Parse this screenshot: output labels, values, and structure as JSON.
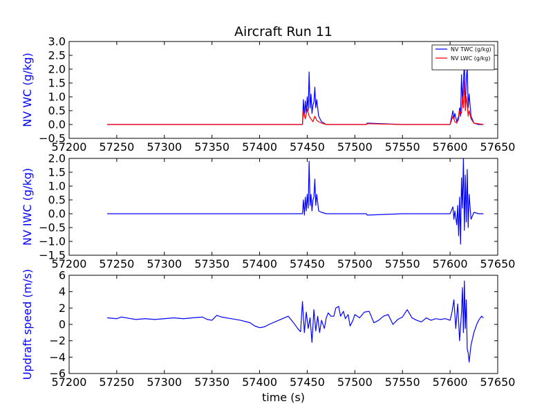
{
  "chart_data": [
    {
      "type": "line",
      "title": "Aircraft Run 11",
      "xlabel": "",
      "ylabel": "NV WC (g/kg)",
      "ylabel_color": "#0000ff",
      "xlim": [
        57200,
        57650
      ],
      "ylim": [
        -0.5,
        3.0
      ],
      "xticks": [
        "57200",
        "57250",
        "57300",
        "57350",
        "57400",
        "57450",
        "57500",
        "57550",
        "57600",
        "57650"
      ],
      "yticks": [
        "3.0",
        "2.5",
        "2.0",
        "1.5",
        "1.0",
        "0.5",
        "0.0",
        "−0.5"
      ],
      "grid": false,
      "legend_position": "upper-right",
      "series": [
        {
          "name": "NV TWC (g/kg)",
          "color": "#0000ff",
          "x": [
            57240,
            57300,
            57350,
            57400,
            57445,
            57446,
            57447,
            57448,
            57449,
            57450,
            57451,
            57452,
            57453,
            57454,
            57455,
            57456,
            57457,
            57458,
            57459,
            57460,
            57462,
            57465,
            57470,
            57500,
            57512,
            57513,
            57550,
            57600,
            57603,
            57604,
            57605,
            57607,
            57609,
            57610,
            57611,
            57612,
            57613,
            57614,
            57615,
            57616,
            57617,
            57618,
            57619,
            57620,
            57622,
            57625,
            57630,
            57635
          ],
          "y": [
            0.0,
            0.0,
            0.0,
            0.0,
            0.0,
            0.9,
            0.3,
            0.85,
            0.4,
            1.0,
            0.5,
            1.9,
            0.6,
            1.1,
            0.4,
            0.7,
            0.8,
            1.35,
            0.6,
            0.9,
            0.3,
            0.1,
            0.0,
            0.0,
            0.0,
            0.05,
            0.0,
            0.0,
            0.5,
            0.2,
            0.4,
            0.1,
            0.3,
            0.6,
            0.3,
            1.8,
            0.8,
            1.5,
            2.3,
            0.5,
            1.6,
            2.1,
            0.6,
            1.1,
            0.3,
            0.05,
            0.0,
            0.0
          ]
        },
        {
          "name": "NV LWC (g/kg)",
          "color": "#ff0000",
          "x": [
            57240,
            57300,
            57350,
            57400,
            57445,
            57446,
            57448,
            57450,
            57452,
            57454,
            57456,
            57458,
            57460,
            57462,
            57465,
            57470,
            57500,
            57512,
            57513,
            57550,
            57600,
            57603,
            57605,
            57607,
            57609,
            57610,
            57612,
            57613,
            57614,
            57615,
            57616,
            57617,
            57618,
            57619,
            57620,
            57622,
            57625,
            57635
          ],
          "y": [
            0.0,
            0.0,
            0.0,
            0.0,
            0.0,
            0.5,
            0.2,
            0.55,
            0.3,
            0.2,
            0.1,
            0.3,
            0.15,
            0.1,
            0.05,
            0.0,
            0.0,
            0.0,
            0.03,
            0.0,
            0.0,
            0.3,
            0.1,
            0.05,
            0.2,
            0.5,
            0.4,
            1.0,
            0.6,
            1.6,
            0.5,
            1.0,
            0.7,
            0.3,
            0.5,
            0.2,
            0.05,
            0.0
          ]
        }
      ]
    },
    {
      "type": "line",
      "title": "",
      "xlabel": "",
      "ylabel": "NV IWC (g/kg)",
      "ylabel_color": "#0000ff",
      "xlim": [
        57200,
        57650
      ],
      "ylim": [
        -1.5,
        2.0
      ],
      "xticks": [
        "57200",
        "57250",
        "57300",
        "57350",
        "57400",
        "57450",
        "57500",
        "57550",
        "57600",
        "57650"
      ],
      "yticks": [
        "2.0",
        "1.5",
        "1.0",
        "0.5",
        "0.0",
        "−0.5",
        "−1.0",
        "−1.5"
      ],
      "grid": false,
      "series": [
        {
          "name": "",
          "color": "#0000ff",
          "x": [
            57240,
            57300,
            57350,
            57400,
            57445,
            57446,
            57447,
            57448,
            57449,
            57450,
            57451,
            57452,
            57453,
            57454,
            57455,
            57456,
            57457,
            57458,
            57459,
            57460,
            57462,
            57465,
            57470,
            57500,
            57512,
            57513,
            57550,
            57600,
            57603,
            57604,
            57605,
            57607,
            57608,
            57609,
            57610,
            57611,
            57612,
            57613,
            57614,
            57615,
            57616,
            57617,
            57618,
            57619,
            57620,
            57622,
            57625,
            57630,
            57635
          ],
          "y": [
            0.0,
            0.0,
            0.0,
            0.0,
            0.0,
            0.5,
            -0.05,
            0.6,
            0.1,
            0.7,
            0.2,
            1.9,
            0.3,
            0.7,
            0.1,
            0.5,
            0.6,
            1.25,
            0.3,
            0.7,
            0.1,
            0.05,
            0.0,
            0.0,
            0.0,
            -0.05,
            0.0,
            0.0,
            0.25,
            -0.2,
            0.1,
            -0.4,
            0.3,
            -0.8,
            0.6,
            -1.1,
            1.3,
            0.2,
            2.0,
            -0.6,
            1.4,
            -0.3,
            1.6,
            -0.5,
            0.7,
            -0.2,
            0.05,
            0.0,
            0.0
          ]
        }
      ]
    },
    {
      "type": "line",
      "title": "",
      "xlabel": "time (s)",
      "ylabel": "Updraft speed (m/s)",
      "ylabel_color": "#0000ff",
      "xlim": [
        57200,
        57650
      ],
      "ylim": [
        -6,
        6
      ],
      "xticks": [
        "57200",
        "57250",
        "57300",
        "57350",
        "57400",
        "57450",
        "57500",
        "57550",
        "57600",
        "57650"
      ],
      "yticks": [
        "6",
        "4",
        "2",
        "0",
        "−2",
        "−4",
        "−6"
      ],
      "grid": false,
      "series": [
        {
          "name": "",
          "color": "#0000ff",
          "x": [
            57240,
            57250,
            57255,
            57260,
            57270,
            57280,
            57290,
            57300,
            57310,
            57320,
            57330,
            57340,
            57345,
            57350,
            57355,
            57360,
            57370,
            57380,
            57390,
            57395,
            57400,
            57405,
            57410,
            57420,
            57430,
            57435,
            57440,
            57443,
            57445,
            57447,
            57449,
            57451,
            57453,
            57455,
            57457,
            57459,
            57461,
            57463,
            57465,
            57468,
            57470,
            57472,
            57475,
            57478,
            57480,
            57483,
            57485,
            57488,
            57490,
            57493,
            57495,
            57498,
            57500,
            57505,
            57510,
            57515,
            57520,
            57525,
            57530,
            57535,
            57540,
            57545,
            57550,
            57555,
            57560,
            57565,
            57570,
            57575,
            57580,
            57585,
            57590,
            57595,
            57600,
            57602,
            57604,
            57606,
            57608,
            57610,
            57612,
            57613,
            57614,
            57615,
            57616,
            57617,
            57618,
            57619,
            57620,
            57622,
            57625,
            57628,
            57630,
            57633,
            57635
          ],
          "y": [
            0.8,
            0.7,
            0.9,
            0.8,
            0.6,
            0.7,
            0.6,
            0.7,
            0.8,
            0.7,
            0.8,
            0.9,
            0.6,
            0.5,
            1.1,
            0.9,
            0.7,
            0.5,
            0.2,
            -0.2,
            -0.4,
            -0.3,
            0.0,
            0.5,
            1.0,
            0.3,
            -0.5,
            -0.9,
            2.8,
            -1.0,
            1.5,
            -0.5,
            0.8,
            -2.2,
            1.8,
            -0.8,
            1.0,
            -1.0,
            0.5,
            -0.5,
            0.8,
            1.4,
            1.0,
            1.0,
            2.0,
            2.2,
            1.0,
            1.6,
            0.7,
            1.2,
            -0.2,
            0.5,
            1.2,
            0.8,
            1.5,
            1.6,
            0.2,
            0.5,
            1.0,
            1.2,
            0.0,
            0.6,
            0.9,
            1.8,
            0.8,
            0.5,
            0.3,
            0.8,
            0.5,
            0.7,
            0.6,
            0.7,
            0.5,
            1.5,
            3.0,
            -0.5,
            2.5,
            -2.0,
            1.5,
            4.5,
            -1.0,
            5.3,
            -0.5,
            3.0,
            -3.0,
            -3.5,
            -4.6,
            -2.5,
            -1.0,
            0.0,
            0.5,
            1.0,
            0.8
          ]
        }
      ]
    }
  ]
}
